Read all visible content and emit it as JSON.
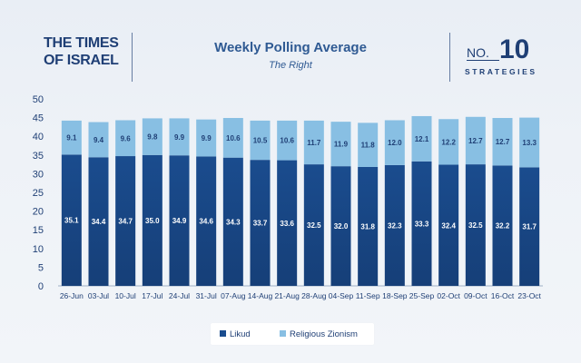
{
  "brand": {
    "line1": "THE TIMES",
    "line2": "OF ISRAEL"
  },
  "badge": {
    "prefix": "NO.",
    "number": "10",
    "label": "STRATEGIES"
  },
  "colors": {
    "likud": "#1a4c8e",
    "religious_zionism": "#88bfe3",
    "text_dark": "#1f3f75"
  },
  "chart_data": {
    "type": "bar",
    "stacked": true,
    "title": "Weekly Polling Average",
    "subtitle": "The Right",
    "categories": [
      "26-Jun",
      "03-Jul",
      "10-Jul",
      "17-Jul",
      "24-Jul",
      "31-Jul",
      "07-Aug",
      "14-Aug",
      "21-Aug",
      "28-Aug",
      "04-Sep",
      "11-Sep",
      "18-Sep",
      "25-Sep",
      "02-Oct",
      "09-Oct",
      "16-Oct",
      "23-Oct"
    ],
    "series": [
      {
        "name": "Likud",
        "values": [
          35.1,
          34.4,
          34.7,
          35.0,
          34.9,
          34.6,
          34.3,
          33.7,
          33.6,
          32.5,
          32.0,
          31.8,
          32.3,
          33.3,
          32.4,
          32.5,
          32.2,
          31.7
        ]
      },
      {
        "name": "Religious  Zionism",
        "values": [
          9.1,
          9.4,
          9.6,
          9.8,
          9.9,
          9.9,
          10.6,
          10.5,
          10.6,
          11.7,
          11.9,
          11.8,
          12.0,
          12.1,
          12.2,
          12.7,
          12.7,
          13.3
        ]
      }
    ],
    "labels": [
      [
        "35.1",
        "34.4",
        "34.7",
        "35.0",
        "34.9",
        "34.6",
        "34.3",
        "33.7",
        "33.6",
        "32.5",
        "32.0",
        "31.8",
        "32.3",
        "33.3",
        "32.4",
        "32.5",
        "32.2",
        "31.7"
      ],
      [
        "9.1",
        "9.4",
        "9.6",
        "9.8",
        "9.9",
        "9.9",
        "10.6",
        "10.5",
        "10.6",
        "11.7",
        "11.9",
        "11.8",
        "12.0",
        "12.1",
        "12.2",
        "12.7",
        "12.7",
        "13.3"
      ]
    ],
    "yticks": [
      "0",
      "5",
      "10",
      "15",
      "20",
      "25",
      "30",
      "35",
      "40",
      "45",
      "50"
    ],
    "ylim": [
      0,
      50
    ],
    "legend_position": "bottom-center",
    "grid": false
  }
}
